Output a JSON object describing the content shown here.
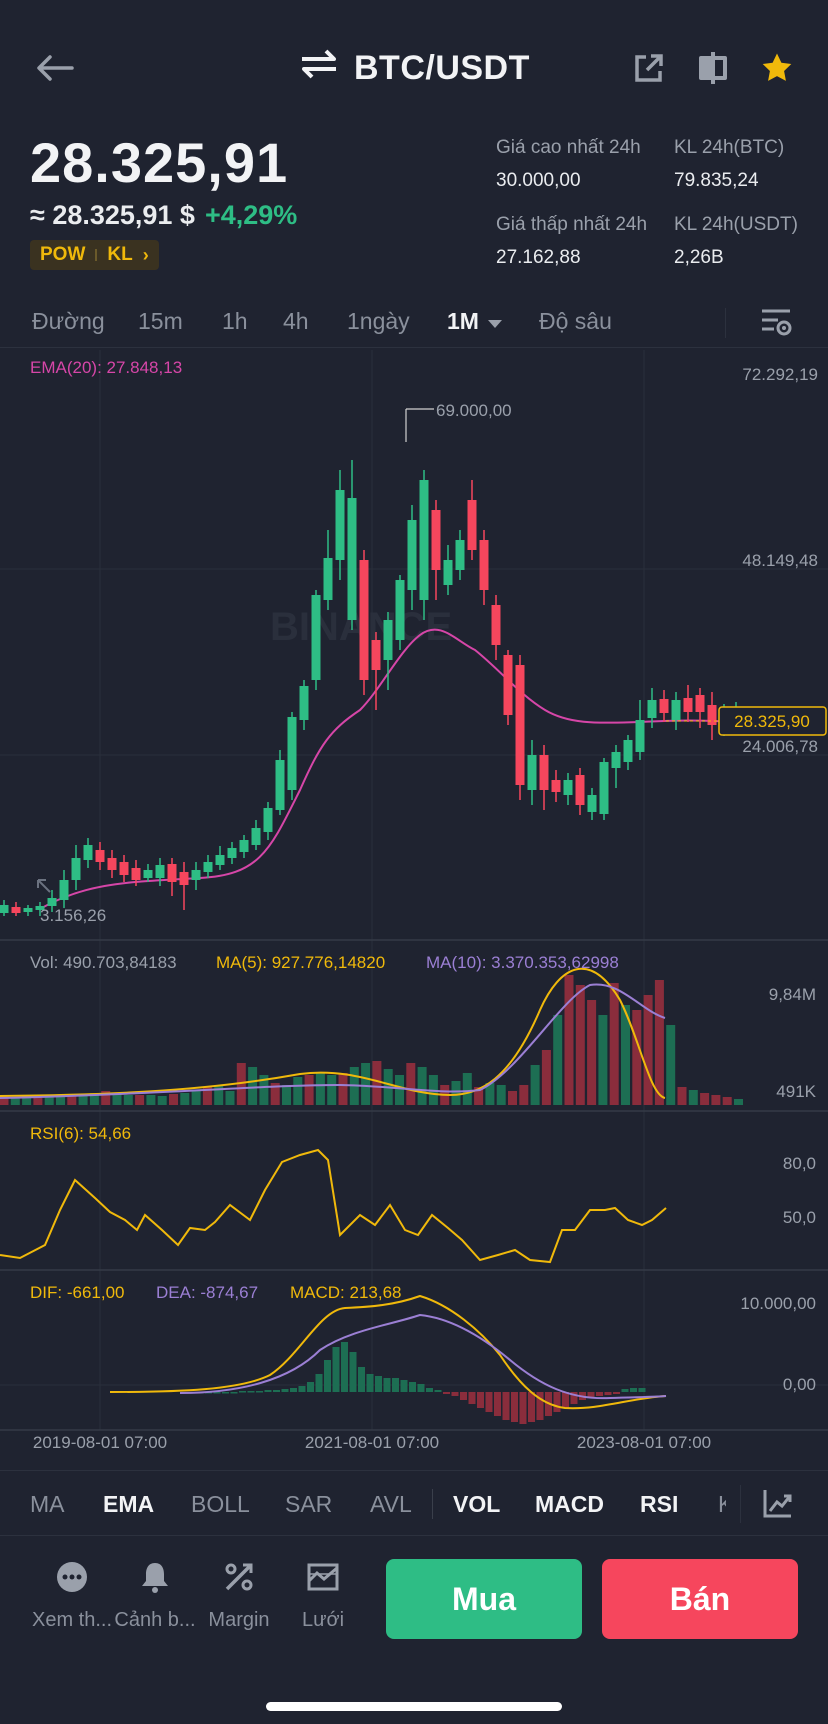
{
  "header": {
    "pair": "BTC/USDT",
    "icons": [
      "back-arrow-icon",
      "swap-icon",
      "share-icon",
      "layout-icon",
      "star-icon"
    ]
  },
  "price": {
    "last": "28.325,91",
    "approx": "≈ 28.325,91 $",
    "change": "+4,29%",
    "tag_pow": "POW",
    "tag_kl": "KL"
  },
  "stats": {
    "high_label": "Giá cao nhất 24h",
    "high_value": "30.000,00",
    "vol_btc_label": "KL 24h(BTC)",
    "vol_btc_value": "79.835,24",
    "low_label": "Giá thấp nhất 24h",
    "low_value": "27.162,88",
    "vol_usdt_label": "KL 24h(USDT)",
    "vol_usdt_value": "2,26B"
  },
  "timeframes": [
    "Đường",
    "15m",
    "1h",
    "4h",
    "1ngày",
    "1M",
    "Độ sâu"
  ],
  "active_timeframe": "1M",
  "main_chart": {
    "ema_label": "EMA(20): 27.848,13",
    "axis": [
      "72.292,19",
      "48.149,48",
      "24.006,78"
    ],
    "high_marker": "69.000,00",
    "low_marker": "3.156,26",
    "current_price": "28.325,90",
    "watermark": "BINANCE"
  },
  "volume": {
    "vol_label": "Vol: 490.703,84183",
    "ma5_label": "MA(5): 927.776,14820",
    "ma10_label": "MA(10): 3.370.353,62998",
    "axis_top": "9,84M",
    "axis_bottom": "491K"
  },
  "rsi": {
    "label": "RSI(6): 54,66",
    "axis": [
      "80,0",
      "50,0"
    ]
  },
  "macd": {
    "dif": "DIF: -661,00",
    "dea": "DEA: -874,67",
    "macd": "MACD: 213,68",
    "axis": [
      "10.000,00",
      "0,00"
    ]
  },
  "dates": [
    "2019-08-01 07:00",
    "2021-08-01 07:00",
    "2023-08-01 07:00"
  ],
  "indicators": [
    "MA",
    "EMA",
    "BOLL",
    "SAR",
    "AVL",
    "VOL",
    "MACD",
    "RSI",
    "K"
  ],
  "actions": {
    "more": "Xem th...",
    "alert": "Cảnh b...",
    "margin": "Margin",
    "grid": "Lưới",
    "buy": "Mua",
    "sell": "Bán"
  },
  "colors": {
    "up": "#2ebd85",
    "down": "#f6465d",
    "accent": "#f0b90b",
    "ema": "#d646a8",
    "dea": "#9b7fd4"
  }
}
